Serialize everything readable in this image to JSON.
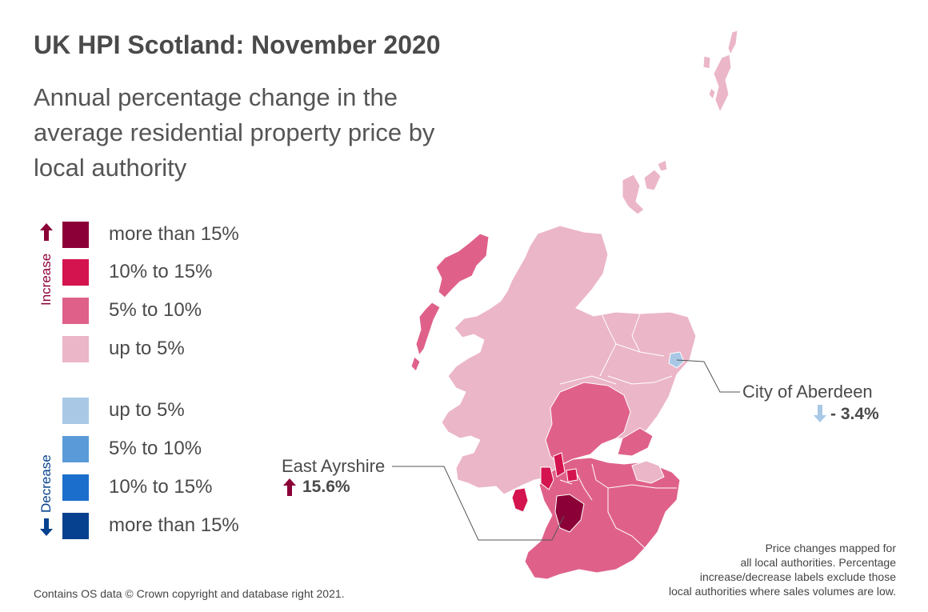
{
  "title": "UK HPI Scotland: November 2020",
  "subtitle": "Annual percentage change in the average residential property price by local authority",
  "legend": {
    "increase_label": "Increase",
    "decrease_label": "Decrease",
    "items": [
      {
        "label": "more than 15%",
        "color": "#8c0038",
        "direction": "increase"
      },
      {
        "label": "10% to 15%",
        "color": "#d4144e",
        "direction": "increase"
      },
      {
        "label": "5% to 10%",
        "color": "#df6189",
        "direction": "increase"
      },
      {
        "label": "up to 5%",
        "color": "#ebb6c8",
        "direction": "increase"
      },
      {
        "label": "up to 5%",
        "color": "#a8c8e6",
        "direction": "decrease"
      },
      {
        "label": "5% to 10%",
        "color": "#5b9ad8",
        "direction": "decrease"
      },
      {
        "label": "10% to 15%",
        "color": "#1b6ecb",
        "direction": "decrease"
      },
      {
        "label": "more than 15%",
        "color": "#05418e",
        "direction": "decrease"
      }
    ]
  },
  "callouts": {
    "aberdeen": {
      "name": "City of Aberdeen",
      "value": "- 3.4%",
      "direction": "decrease"
    },
    "east_ayrshire": {
      "name": "East Ayrshire",
      "value": "15.6%",
      "direction": "increase"
    }
  },
  "footnote": [
    "Price changes mapped for",
    "all local authorities. Percentage",
    "increase/decrease labels exclude those",
    "local authorities where sales volumes are low."
  ],
  "credit": "Contains OS data © Crown copyright and database right 2021.",
  "colors": {
    "increase_arrow": "#8c0038",
    "decrease_arrow": "#05418e",
    "aberdeen_arrow": "#a8c8e6",
    "leader_line": "#555555"
  }
}
